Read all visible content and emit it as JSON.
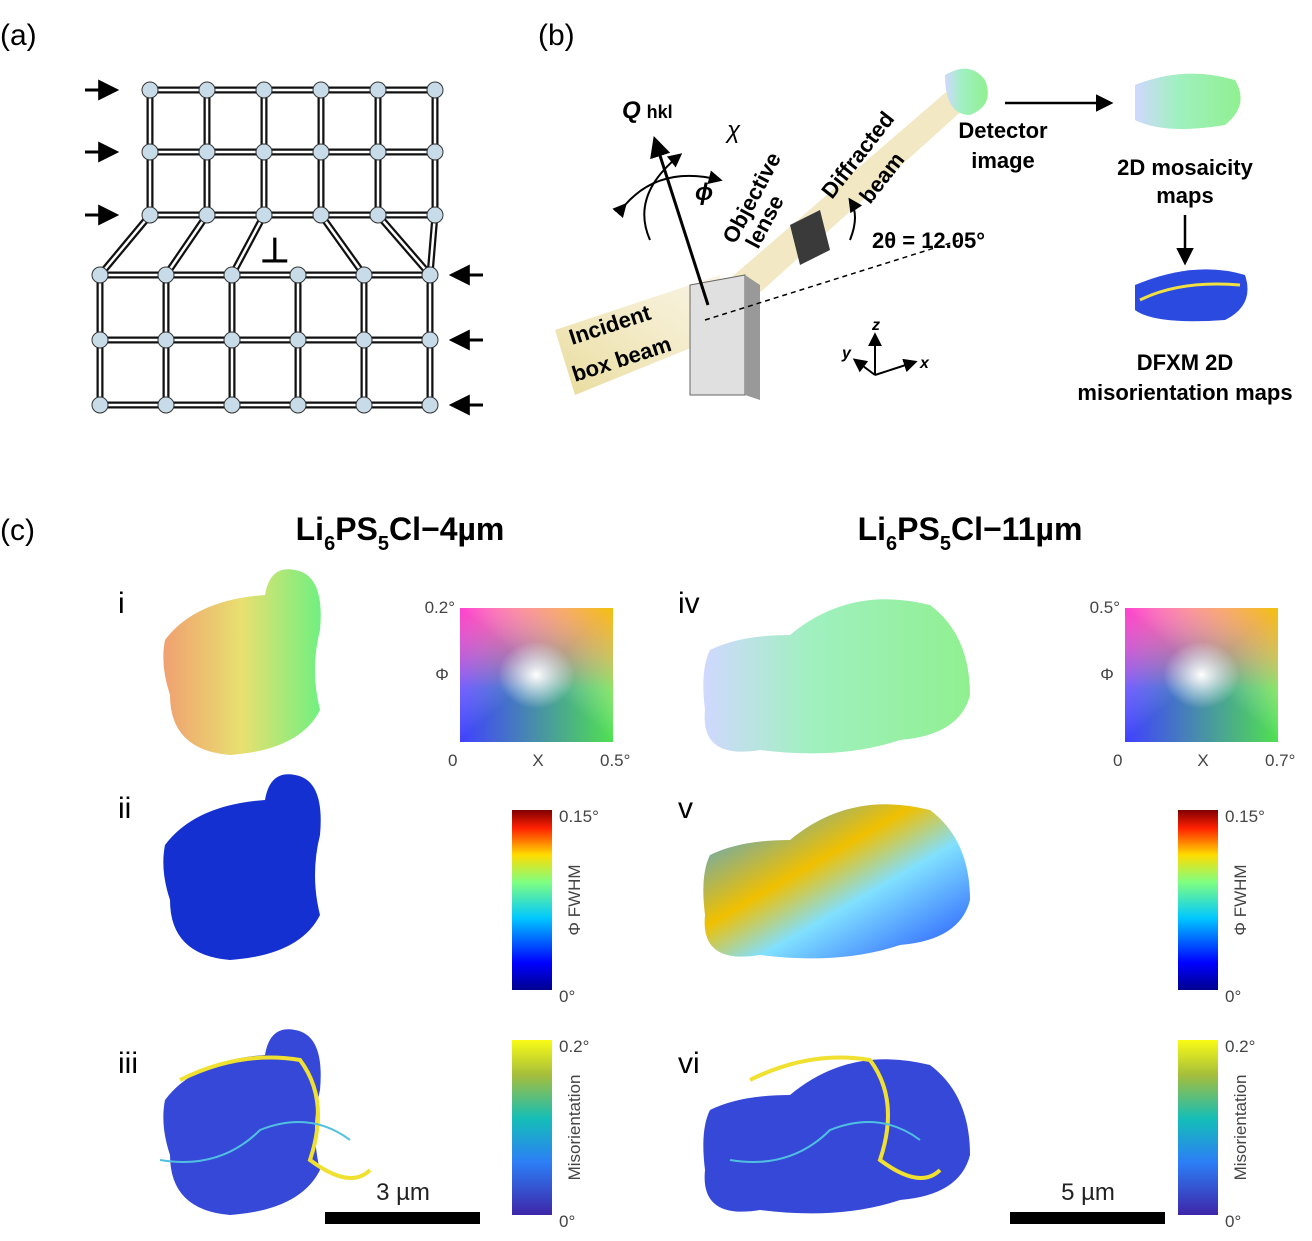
{
  "panel_a": {
    "label": "(a)"
  },
  "panel_b": {
    "label": "(b)",
    "q_vector": "Q",
    "q_subscript": "hkl",
    "chi": "χ",
    "phi": "ϕ",
    "objective": [
      "Objective",
      "lense"
    ],
    "diffracted": [
      "Diffracted",
      "beam"
    ],
    "two_theta": "2θ = 12.05°",
    "incident": [
      "Incident",
      "box beam"
    ],
    "axes": {
      "z": "z",
      "y": "y",
      "x": "x"
    },
    "detector": [
      "Detector",
      "image"
    ],
    "mosaicity": [
      "2D mosaicity",
      "maps"
    ],
    "misorientation": [
      "DFXM 2D",
      "misorientation maps"
    ]
  },
  "panel_c": {
    "label": "(c)",
    "columns": [
      {
        "title": {
          "base": "Li",
          "sub1": "6",
          "mid": "PS",
          "sub2": "5",
          "tail": "Cl−4µm"
        },
        "rows": [
          {
            "label": "i",
            "colorkey": {
              "top": "0.2°",
              "y_label": "Φ",
              "origin": "0",
              "x_label": "X",
              "right": "0.5°"
            }
          },
          {
            "label": "ii",
            "colorbar": {
              "top": "0.15°",
              "label": "Φ FWHM",
              "bottom": "0°"
            }
          },
          {
            "label": "iii",
            "colorbar": {
              "top": "0.2°",
              "label": "Misorientation",
              "bottom": "0°"
            },
            "scale_bar": "3 µm"
          }
        ]
      },
      {
        "title": {
          "base": "Li",
          "sub1": "6",
          "mid": "PS",
          "sub2": "5",
          "tail": "Cl−11µm"
        },
        "rows": [
          {
            "label": "iv",
            "colorkey": {
              "top": "0.5°",
              "y_label": "Φ",
              "origin": "0",
              "x_label": "X",
              "right": "0.7°"
            }
          },
          {
            "label": "v",
            "colorbar": {
              "top": "0.15°",
              "label": "Φ FWHM",
              "bottom": "0°"
            }
          },
          {
            "label": "vi",
            "colorbar": {
              "top": "0.2°",
              "label": "Misorientation",
              "bottom": "0°"
            },
            "scale_bar": "5 µm"
          }
        ]
      }
    ]
  }
}
